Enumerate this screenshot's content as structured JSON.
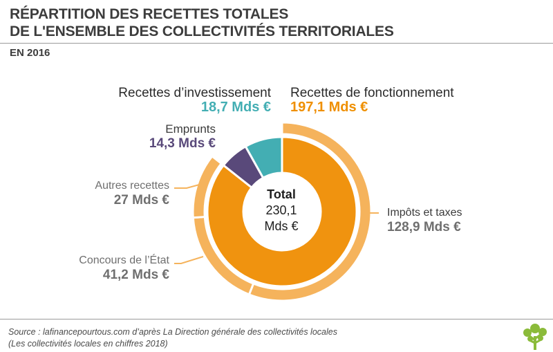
{
  "header": {
    "title_line1": "RÉPARTITION DES RECETTES TOTALES",
    "title_line2": "DE L'ENSEMBLE DES COLLECTIVITÉS TERRITORIALES",
    "subtitle": "EN 2016"
  },
  "center": {
    "label": "Total",
    "value": "230,1",
    "unit": "Mds €"
  },
  "labels": {
    "investissement": {
      "name": "Recettes d’investissement",
      "value": "18,7 Mds €"
    },
    "fonctionnement": {
      "name": "Recettes de fonctionnement",
      "value": "197,1 Mds €"
    },
    "emprunts": {
      "name": "Emprunts",
      "value": "14,3 Mds €"
    },
    "autres": {
      "name": "Autres recettes",
      "value": "27 Mds €"
    },
    "impots": {
      "name": "Impôts et taxes",
      "value": "128,9 Mds €"
    },
    "concours": {
      "name": "Concours de l’État",
      "value": "41,2 Mds €"
    }
  },
  "source": {
    "line1": "Source : lafinancepourtous.com d’après La Direction générale des collectivités locales",
    "line2": "(Les collectivités locales en chiffres 2018)"
  },
  "colors": {
    "fonctionnement_inner": "#f0930f",
    "fonctionnement_outer": "#f5b35c",
    "investissement": "#43aeb3",
    "emprunts": "#59497a",
    "label_grey": "#6f6f6f",
    "value_orange": "#ef8f00",
    "value_teal": "#43aeb3",
    "value_purple": "#59497a"
  },
  "chart_data": {
    "type": "pie",
    "total": 230.1,
    "inner_ring": [
      {
        "name": "Recettes de fonctionnement",
        "value": 197.1
      },
      {
        "name": "Emprunts",
        "value": 14.3
      },
      {
        "name": "Recettes d’investissement",
        "value": 18.7
      }
    ],
    "outer_ring": [
      {
        "name": "Impôts et taxes",
        "value": 128.9
      },
      {
        "name": "Concours de l’État",
        "value": 41.2
      },
      {
        "name": "Autres recettes",
        "value": 27
      }
    ]
  }
}
